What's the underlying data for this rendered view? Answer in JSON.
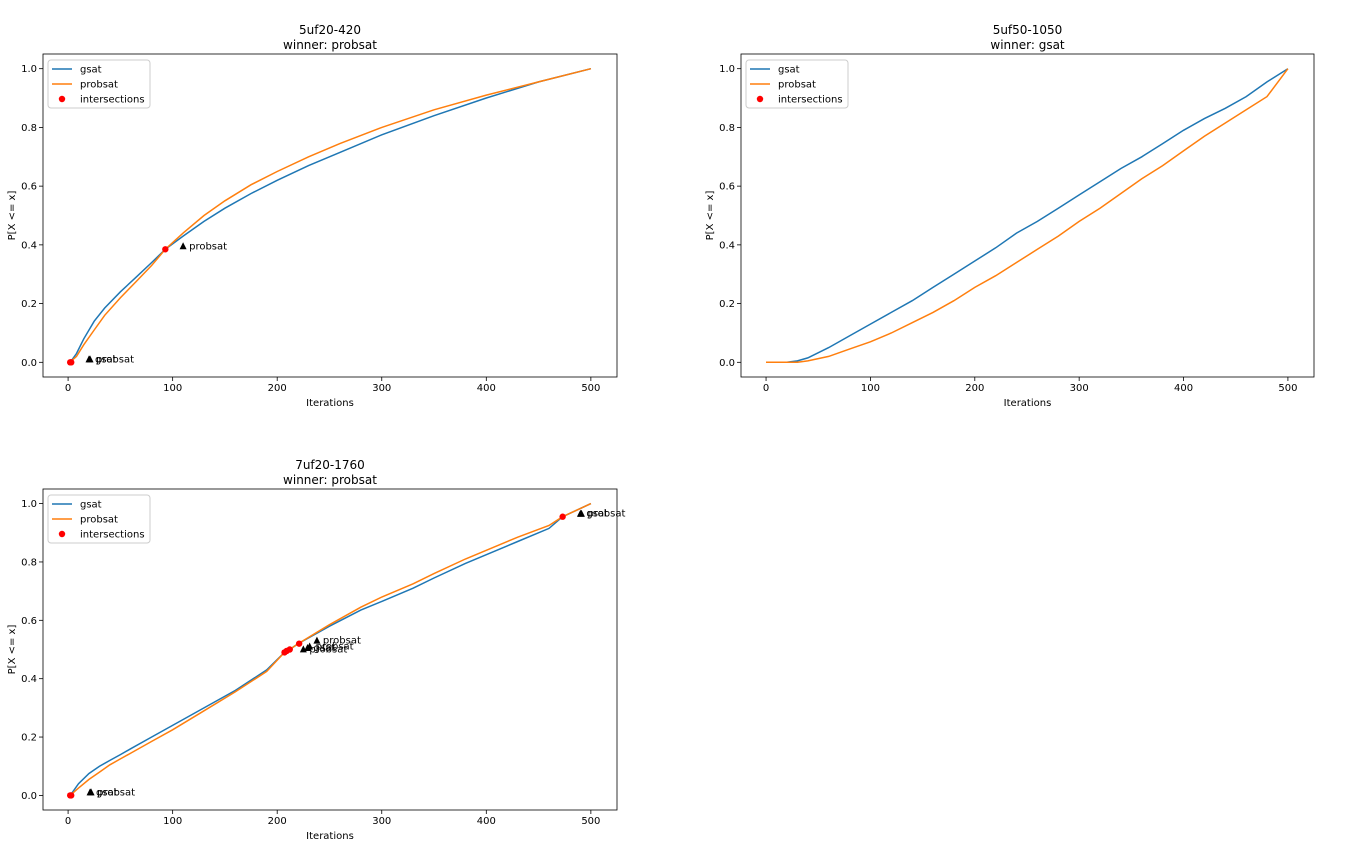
{
  "figure": {
    "colors": {
      "gsat": "#1f77b4",
      "probsat": "#ff7f0e",
      "intersections": "#ff0000",
      "annotation_marker": "#000000"
    },
    "legend_labels": [
      "gsat",
      "probsat",
      "intersections"
    ]
  },
  "chart_data": [
    {
      "type": "line",
      "title_line1": "5uf20-420",
      "title_line2": "winner: probsat",
      "xlabel": "Iterations",
      "ylabel": "P[X <= x]",
      "xlim": [
        -24,
        525
      ],
      "ylim": [
        -0.05,
        1.05
      ],
      "xticks": [
        0,
        100,
        200,
        300,
        400,
        500
      ],
      "yticks": [
        0.0,
        0.2,
        0.4,
        0.6,
        0.8,
        1.0
      ],
      "grid": false,
      "legend_position": "upper-left",
      "series": [
        {
          "name": "gsat",
          "x": [
            0,
            3,
            8,
            15,
            25,
            35,
            50,
            65,
            80,
            93,
            110,
            130,
            150,
            175,
            200,
            230,
            260,
            300,
            350,
            400,
            450,
            500
          ],
          "y": [
            0,
            0.005,
            0.03,
            0.08,
            0.14,
            0.185,
            0.24,
            0.29,
            0.34,
            0.385,
            0.43,
            0.48,
            0.525,
            0.575,
            0.62,
            0.67,
            0.715,
            0.775,
            0.84,
            0.9,
            0.955,
            1.0
          ]
        },
        {
          "name": "probsat",
          "x": [
            0,
            3,
            8,
            15,
            25,
            35,
            50,
            65,
            80,
            93,
            110,
            130,
            150,
            175,
            200,
            230,
            260,
            300,
            350,
            400,
            450,
            500
          ],
          "y": [
            0,
            0.004,
            0.02,
            0.06,
            0.11,
            0.16,
            0.22,
            0.275,
            0.33,
            0.385,
            0.44,
            0.5,
            0.55,
            0.605,
            0.65,
            0.7,
            0.745,
            0.8,
            0.86,
            0.91,
            0.955,
            1.0
          ]
        }
      ],
      "intersections": {
        "x": [
          2,
          3,
          93
        ],
        "y": [
          0.0,
          0.0,
          0.385
        ]
      },
      "annotations": [
        {
          "x": 20,
          "y": 0.0,
          "label": "gsat"
        },
        {
          "x": 21,
          "y": 0.0,
          "label": "probsat"
        },
        {
          "x": 110,
          "y": 0.385,
          "label": "probsat"
        }
      ]
    },
    {
      "type": "line",
      "title_line1": "5uf50-1050",
      "title_line2": "winner: gsat",
      "xlabel": "Iterations",
      "ylabel": "P[X <= x]",
      "xlim": [
        -24,
        525
      ],
      "ylim": [
        -0.05,
        1.05
      ],
      "xticks": [
        0,
        100,
        200,
        300,
        400,
        500
      ],
      "yticks": [
        0.0,
        0.2,
        0.4,
        0.6,
        0.8,
        1.0
      ],
      "grid": false,
      "legend_position": "upper-left",
      "series": [
        {
          "name": "gsat",
          "x": [
            0,
            20,
            30,
            40,
            60,
            80,
            100,
            120,
            140,
            160,
            180,
            200,
            220,
            240,
            260,
            280,
            300,
            320,
            340,
            360,
            380,
            400,
            420,
            440,
            460,
            480,
            500
          ],
          "y": [
            0,
            0,
            0.005,
            0.015,
            0.05,
            0.09,
            0.13,
            0.17,
            0.21,
            0.255,
            0.3,
            0.345,
            0.39,
            0.44,
            0.48,
            0.525,
            0.57,
            0.615,
            0.66,
            0.7,
            0.745,
            0.79,
            0.83,
            0.865,
            0.905,
            0.955,
            1.0
          ]
        },
        {
          "name": "probsat",
          "x": [
            0,
            20,
            30,
            40,
            60,
            80,
            100,
            120,
            140,
            160,
            180,
            200,
            220,
            240,
            260,
            280,
            300,
            320,
            340,
            360,
            380,
            400,
            420,
            440,
            460,
            480,
            500
          ],
          "y": [
            0,
            0,
            0,
            0.005,
            0.02,
            0.045,
            0.07,
            0.1,
            0.135,
            0.17,
            0.21,
            0.255,
            0.295,
            0.34,
            0.385,
            0.43,
            0.48,
            0.525,
            0.575,
            0.625,
            0.67,
            0.72,
            0.77,
            0.815,
            0.86,
            0.905,
            1.0
          ]
        }
      ],
      "intersections": {
        "x": [],
        "y": []
      },
      "annotations": []
    },
    {
      "type": "line",
      "title_line1": "7uf20-1760",
      "title_line2": "winner: probsat",
      "xlabel": "Iterations",
      "ylabel": "P[X <= x]",
      "xlim": [
        -24,
        525
      ],
      "ylim": [
        -0.05,
        1.05
      ],
      "xticks": [
        0,
        100,
        200,
        300,
        400,
        500
      ],
      "yticks": [
        0.0,
        0.2,
        0.4,
        0.6,
        0.8,
        1.0
      ],
      "grid": false,
      "legend_position": "upper-left",
      "series": [
        {
          "name": "gsat",
          "x": [
            0,
            3,
            10,
            20,
            30,
            40,
            50,
            60,
            80,
            100,
            130,
            160,
            190,
            207,
            212,
            220,
            250,
            280,
            300,
            330,
            350,
            380,
            400,
            430,
            460,
            473,
            500
          ],
          "y": [
            0,
            0.005,
            0.04,
            0.075,
            0.1,
            0.12,
            0.14,
            0.16,
            0.2,
            0.24,
            0.3,
            0.36,
            0.43,
            0.49,
            0.5,
            0.52,
            0.58,
            0.635,
            0.665,
            0.71,
            0.745,
            0.795,
            0.825,
            0.87,
            0.915,
            0.955,
            1.0
          ]
        },
        {
          "name": "probsat",
          "x": [
            0,
            3,
            10,
            20,
            30,
            40,
            50,
            60,
            80,
            100,
            130,
            160,
            190,
            207,
            212,
            220,
            250,
            280,
            300,
            330,
            350,
            380,
            400,
            430,
            460,
            473,
            500
          ],
          "y": [
            0,
            0.003,
            0.025,
            0.055,
            0.08,
            0.105,
            0.125,
            0.145,
            0.185,
            0.225,
            0.29,
            0.355,
            0.425,
            0.49,
            0.5,
            0.52,
            0.585,
            0.645,
            0.68,
            0.725,
            0.76,
            0.81,
            0.84,
            0.885,
            0.925,
            0.955,
            1.0
          ]
        }
      ],
      "intersections": {
        "x": [
          2,
          3,
          207,
          209,
          212,
          221,
          473
        ],
        "y": [
          0.0,
          0.0,
          0.49,
          0.495,
          0.5,
          0.52,
          0.955
        ]
      },
      "annotations": [
        {
          "x": 21,
          "y": 0.0,
          "label": "gsat"
        },
        {
          "x": 22,
          "y": 0.0,
          "label": "probsat"
        },
        {
          "x": 225,
          "y": 0.49,
          "label": "probsat"
        },
        {
          "x": 229,
          "y": 0.495,
          "label": "gsat"
        },
        {
          "x": 231,
          "y": 0.5,
          "label": "probsat"
        },
        {
          "x": 238,
          "y": 0.52,
          "label": "probsat"
        },
        {
          "x": 490,
          "y": 0.955,
          "label": "gsat"
        },
        {
          "x": 491,
          "y": 0.955,
          "label": "probsat"
        }
      ]
    }
  ]
}
